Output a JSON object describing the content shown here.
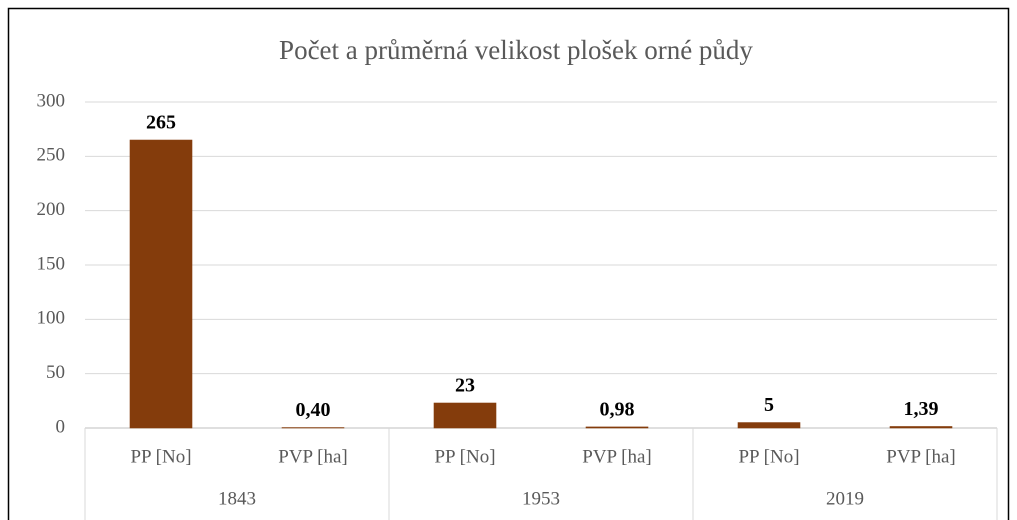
{
  "chart_data": {
    "type": "bar",
    "title": "Počet a průměrná velikost plošek orné půdy",
    "categories": [
      "PP [No]",
      "PVP [ha]",
      "PP [No]",
      "PVP [ha]",
      "PP [No]",
      "PVP [ha]"
    ],
    "groups": [
      "1843",
      "1953",
      "2019"
    ],
    "values": [
      265,
      0.4,
      23,
      0.98,
      5,
      1.39
    ],
    "value_labels": [
      "265",
      "0,40",
      "23",
      "0,98",
      "5",
      "1,39"
    ],
    "color": "#843c0c",
    "ylim": [
      0,
      300
    ],
    "yticks": [
      0,
      50,
      100,
      150,
      200,
      250,
      300
    ],
    "grid": true
  }
}
